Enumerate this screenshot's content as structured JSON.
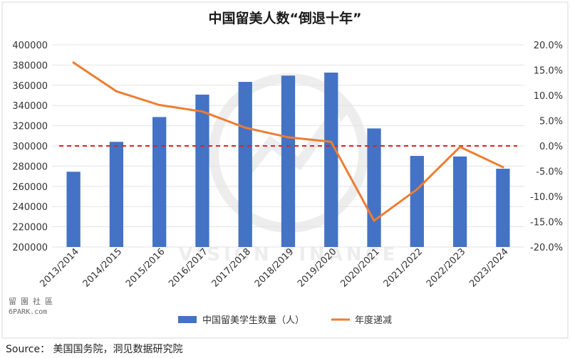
{
  "chart_data": {
    "type": "bar+line",
    "title": "中国留美人数“倒退十年”",
    "categories": [
      "2013/2014",
      "2014/2015",
      "2015/2016",
      "2016/2017",
      "2017/2018",
      "2018/2019",
      "2019/2020",
      "2020/2021",
      "2021/2022",
      "2022/2023",
      "2023/2024"
    ],
    "series": [
      {
        "name": "中国留美学生数量（人）",
        "kind": "bar",
        "axis": "left",
        "color": "#4472C4",
        "values": [
          274439,
          304040,
          328547,
          350755,
          363341,
          369548,
          372532,
          317299,
          290086,
          289526,
          277398
        ]
      },
      {
        "name": "年度递减",
        "kind": "line",
        "axis": "right",
        "color": "#ED7D31",
        "values": [
          16.5,
          10.8,
          8.1,
          6.8,
          3.6,
          1.7,
          0.8,
          -14.8,
          -8.6,
          -0.2,
          -4.2
        ]
      }
    ],
    "left_axis": {
      "min": 200000,
      "max": 400000,
      "step": 20000,
      "ticks": [
        "200000",
        "220000",
        "240000",
        "260000",
        "280000",
        "300000",
        "320000",
        "340000",
        "360000",
        "380000",
        "400000"
      ]
    },
    "right_axis": {
      "min": -20,
      "max": 20,
      "step": 5,
      "ticks": [
        "-20.0%",
        "-15.0%",
        "-10.0%",
        "-5.0%",
        "0.0%",
        "5.0%",
        "10.0%",
        "15.0%",
        "20.0%"
      ]
    },
    "reference_line": {
      "right_value": 0,
      "style": "dashed",
      "color": "#E02020"
    },
    "legend_position": "bottom",
    "grid": true,
    "watermark": {
      "text": "VISION FINANCE"
    }
  },
  "source": "Source：  美国国务院，洞见数据研究院",
  "site_mark": {
    "line1": "留園社區",
    "line2": "6PARK.com"
  }
}
